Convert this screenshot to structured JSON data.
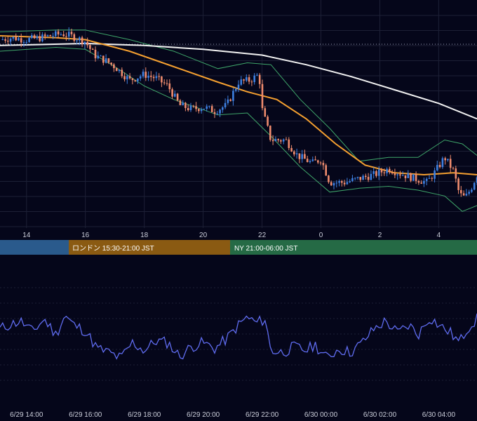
{
  "colors": {
    "background": "#05061a",
    "grid": "#1d2036",
    "candle_up": "#3d7fe0",
    "candle_down": "#f08c6e",
    "ma_short": "#f5a030",
    "ma_long": "#f2f2f2",
    "bollinger": "#3fa66a",
    "oscillator": "#5f6cf0",
    "session_tokyo": "#2a5a8c",
    "session_london": "#8a5a12",
    "session_ny": "#256a45"
  },
  "sessions": [
    {
      "label": "",
      "color": "#2a5a8c"
    },
    {
      "label": "ロンドン 15:30-21:00 JST",
      "color": "#8a5a12"
    },
    {
      "label": "NY 21:00-06:00 JST",
      "color": "#256a45"
    }
  ],
  "chart_data": [
    {
      "type": "candlestick",
      "x_ticks": [
        "14",
        "16",
        "18",
        "20",
        "22",
        "0",
        "2",
        "4"
      ],
      "x_range_hours": [
        13.1,
        29.3
      ],
      "ylim": [
        0,
        100
      ],
      "grid": true,
      "indicators": [
        "moving average (short)",
        "moving average (long)",
        "bollinger bands"
      ],
      "close": [
        [
          13.1,
          94
        ],
        [
          13.5,
          95
        ],
        [
          14.0,
          94
        ],
        [
          14.5,
          95
        ],
        [
          14.8,
          96
        ],
        [
          15.2,
          97
        ],
        [
          15.5,
          96
        ],
        [
          16.0,
          93
        ],
        [
          16.3,
          86
        ],
        [
          16.7,
          83
        ],
        [
          17.0,
          80
        ],
        [
          17.5,
          73
        ],
        [
          18.0,
          76
        ],
        [
          18.4,
          74
        ],
        [
          18.8,
          70
        ],
        [
          19.2,
          60
        ],
        [
          19.6,
          58
        ],
        [
          20.0,
          59
        ],
        [
          20.4,
          57
        ],
        [
          20.8,
          60
        ],
        [
          21.2,
          72
        ],
        [
          21.6,
          73
        ],
        [
          21.9,
          76
        ],
        [
          22.0,
          58
        ],
        [
          22.3,
          42
        ],
        [
          22.8,
          42
        ],
        [
          23.2,
          34
        ],
        [
          23.7,
          30
        ],
        [
          24.0,
          32
        ],
        [
          24.3,
          20
        ],
        [
          24.8,
          20
        ],
        [
          25.3,
          22
        ],
        [
          25.8,
          24
        ],
        [
          26.3,
          27
        ],
        [
          26.8,
          24
        ],
        [
          27.2,
          22
        ],
        [
          27.6,
          20
        ],
        [
          27.9,
          26
        ],
        [
          28.2,
          33
        ],
        [
          28.5,
          26
        ],
        [
          28.7,
          14
        ],
        [
          28.9,
          12
        ],
        [
          29.1,
          17
        ],
        [
          29.3,
          24
        ]
      ],
      "ma_short": [
        [
          13.1,
          96
        ],
        [
          15.0,
          95
        ],
        [
          16.0,
          94
        ],
        [
          17.5,
          88
        ],
        [
          19.0,
          80
        ],
        [
          20.5,
          72
        ],
        [
          21.5,
          67
        ],
        [
          22.5,
          63
        ],
        [
          23.5,
          53
        ],
        [
          24.5,
          40
        ],
        [
          25.5,
          29
        ],
        [
          26.5,
          25
        ],
        [
          27.5,
          24
        ],
        [
          28.5,
          25
        ],
        [
          29.3,
          24
        ]
      ],
      "ma_long": [
        [
          13.1,
          91
        ],
        [
          16.0,
          92
        ],
        [
          18.0,
          91
        ],
        [
          20.0,
          89
        ],
        [
          22.0,
          86
        ],
        [
          23.5,
          81
        ],
        [
          25.0,
          75
        ],
        [
          26.5,
          68
        ],
        [
          28.0,
          61
        ],
        [
          29.3,
          53
        ]
      ],
      "bollinger_upper": [
        [
          13.1,
          98
        ],
        [
          15.0,
          99
        ],
        [
          16.0,
          99
        ],
        [
          17.5,
          94
        ],
        [
          19.0,
          88
        ],
        [
          20.5,
          79
        ],
        [
          21.5,
          82
        ],
        [
          22.3,
          81
        ],
        [
          23.3,
          63
        ],
        [
          24.3,
          48
        ],
        [
          25.3,
          31
        ],
        [
          26.3,
          33
        ],
        [
          27.3,
          33
        ],
        [
          28.2,
          42
        ],
        [
          28.8,
          40
        ],
        [
          29.3,
          34
        ]
      ],
      "bollinger_lower": [
        [
          13.1,
          88
        ],
        [
          15.0,
          90
        ],
        [
          16.0,
          89
        ],
        [
          17.0,
          80
        ],
        [
          18.0,
          70
        ],
        [
          19.0,
          63
        ],
        [
          20.5,
          55
        ],
        [
          21.5,
          56
        ],
        [
          22.3,
          44
        ],
        [
          23.3,
          28
        ],
        [
          24.3,
          15
        ],
        [
          25.3,
          17
        ],
        [
          26.3,
          18
        ],
        [
          27.3,
          16
        ],
        [
          28.2,
          13
        ],
        [
          28.8,
          5
        ],
        [
          29.3,
          8
        ]
      ]
    },
    {
      "type": "line",
      "ylim": [
        0,
        100
      ],
      "grid": true,
      "x_ticks": [
        "6/29 14:00",
        "6/29 16:00",
        "6/29 18:00",
        "6/29 20:00",
        "6/29 22:00",
        "6/30 00:00",
        "6/30 02:00",
        "6/30 04:00"
      ],
      "x_range_hours": [
        13.1,
        29.3
      ],
      "series": [
        {
          "values": [
            [
              13.1,
              58
            ],
            [
              13.4,
              62
            ],
            [
              13.8,
              66
            ],
            [
              14.2,
              55
            ],
            [
              14.6,
              68
            ],
            [
              15.0,
              52
            ],
            [
              15.3,
              72
            ],
            [
              15.6,
              62
            ],
            [
              16.0,
              56
            ],
            [
              16.4,
              38
            ],
            [
              16.8,
              34
            ],
            [
              17.2,
              28
            ],
            [
              17.6,
              44
            ],
            [
              18.0,
              36
            ],
            [
              18.4,
              46
            ],
            [
              18.8,
              44
            ],
            [
              19.2,
              30
            ],
            [
              19.6,
              40
            ],
            [
              20.0,
              44
            ],
            [
              20.4,
              38
            ],
            [
              20.8,
              48
            ],
            [
              21.2,
              62
            ],
            [
              21.5,
              70
            ],
            [
              21.8,
              64
            ],
            [
              22.1,
              68
            ],
            [
              22.3,
              36
            ],
            [
              22.7,
              34
            ],
            [
              23.1,
              40
            ],
            [
              23.5,
              36
            ],
            [
              23.8,
              42
            ],
            [
              24.2,
              28
            ],
            [
              24.6,
              38
            ],
            [
              25.0,
              34
            ],
            [
              25.4,
              44
            ],
            [
              25.8,
              58
            ],
            [
              26.2,
              66
            ],
            [
              26.6,
              54
            ],
            [
              27.0,
              62
            ],
            [
              27.3,
              52
            ],
            [
              27.7,
              70
            ],
            [
              28.0,
              62
            ],
            [
              28.4,
              54
            ],
            [
              28.7,
              44
            ],
            [
              29.0,
              60
            ],
            [
              29.3,
              68
            ]
          ]
        }
      ]
    }
  ]
}
